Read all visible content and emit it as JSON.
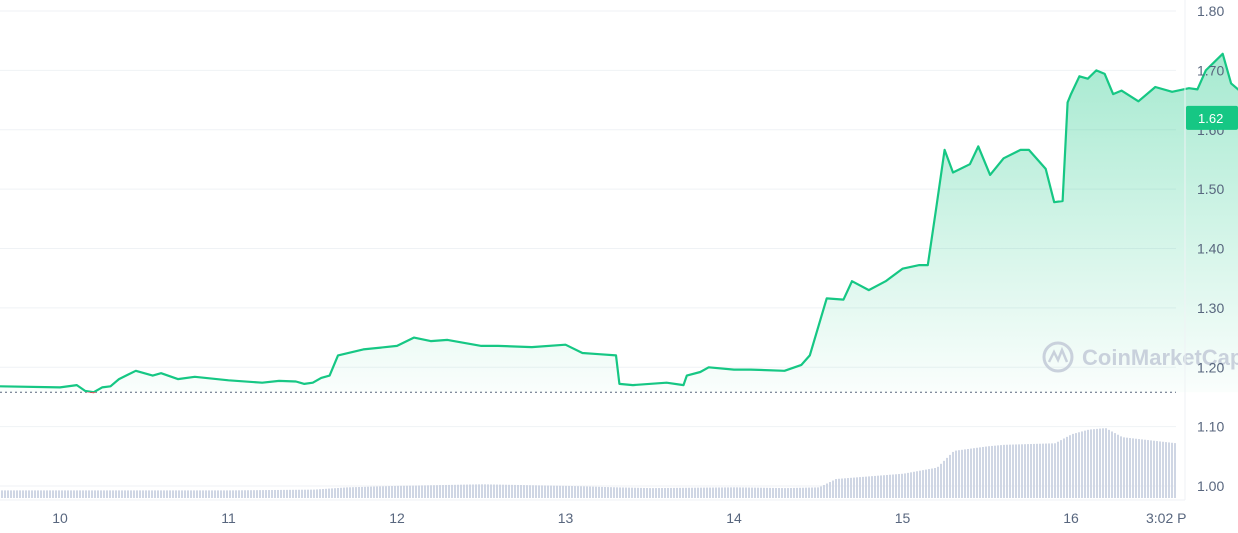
{
  "chart_data": {
    "type": "area",
    "series": [
      {
        "values": [
          [
            0,
            1.166
          ],
          [
            0.1,
            1.17
          ],
          [
            0.15,
            1.16
          ],
          [
            0.2,
            1.158
          ],
          [
            0.25,
            1.166
          ],
          [
            0.3,
            1.168
          ],
          [
            0.35,
            1.18
          ],
          [
            0.45,
            1.194
          ],
          [
            0.55,
            1.186
          ],
          [
            0.6,
            1.19
          ],
          [
            0.7,
            1.18
          ],
          [
            0.8,
            1.184
          ],
          [
            1.0,
            1.178
          ],
          [
            1.2,
            1.174
          ],
          [
            1.3,
            1.177
          ],
          [
            1.4,
            1.176
          ],
          [
            1.45,
            1.172
          ],
          [
            1.5,
            1.174
          ],
          [
            1.55,
            1.182
          ],
          [
            1.6,
            1.186
          ],
          [
            1.65,
            1.22
          ],
          [
            1.8,
            1.23
          ],
          [
            2.0,
            1.236
          ],
          [
            2.1,
            1.25
          ],
          [
            2.2,
            1.244
          ],
          [
            2.3,
            1.246
          ],
          [
            2.5,
            1.236
          ],
          [
            2.6,
            1.236
          ],
          [
            2.8,
            1.234
          ],
          [
            3.0,
            1.238
          ],
          [
            3.1,
            1.224
          ],
          [
            3.2,
            1.222
          ],
          [
            3.3,
            1.22
          ],
          [
            3.32,
            1.172
          ],
          [
            3.4,
            1.17
          ],
          [
            3.6,
            1.174
          ],
          [
            3.7,
            1.17
          ],
          [
            3.72,
            1.186
          ],
          [
            3.8,
            1.192
          ],
          [
            3.85,
            1.2
          ],
          [
            4.0,
            1.196
          ],
          [
            4.1,
            1.196
          ],
          [
            4.3,
            1.194
          ],
          [
            4.4,
            1.204
          ],
          [
            4.45,
            1.22
          ],
          [
            4.55,
            1.316
          ],
          [
            4.65,
            1.314
          ],
          [
            4.7,
            1.345
          ],
          [
            4.8,
            1.33
          ],
          [
            4.9,
            1.345
          ],
          [
            5.0,
            1.366
          ],
          [
            5.1,
            1.372
          ],
          [
            5.15,
            1.372
          ],
          [
            5.2,
            1.468
          ],
          [
            5.25,
            1.566
          ],
          [
            5.3,
            1.528
          ],
          [
            5.4,
            1.542
          ],
          [
            5.45,
            1.572
          ],
          [
            5.52,
            1.524
          ],
          [
            5.6,
            1.552
          ],
          [
            5.7,
            1.566
          ],
          [
            5.75,
            1.566
          ],
          [
            5.8,
            1.55
          ],
          [
            5.85,
            1.534
          ],
          [
            5.9,
            1.478
          ],
          [
            5.95,
            1.48
          ],
          [
            5.98,
            1.646
          ],
          [
            6.0,
            1.66
          ],
          [
            6.05,
            1.69
          ],
          [
            6.1,
            1.686
          ],
          [
            6.15,
            1.7
          ],
          [
            6.2,
            1.694
          ],
          [
            6.25,
            1.66
          ],
          [
            6.3,
            1.666
          ],
          [
            6.4,
            1.648
          ],
          [
            6.5,
            1.672
          ],
          [
            6.6,
            1.664
          ],
          [
            6.7,
            1.67
          ],
          [
            6.75,
            1.668
          ],
          [
            6.8,
            1.7
          ],
          [
            6.9,
            1.728
          ],
          [
            6.95,
            1.678
          ],
          [
            7.0,
            1.666
          ],
          [
            7.05,
            1.634
          ],
          [
            7.15,
            1.64
          ],
          [
            7.25,
            1.65
          ],
          [
            7.3,
            1.632
          ],
          [
            7.35,
            1.604
          ],
          [
            7.4,
            1.606
          ],
          [
            7.45,
            1.608
          ],
          [
            7.5,
            1.622
          ],
          [
            7.6,
            1.63
          ],
          [
            7.65,
            1.646
          ],
          [
            7.7,
            1.64
          ],
          [
            7.75,
            1.63
          ],
          [
            7.78,
            1.62
          ]
        ]
      }
    ],
    "volume": [
      [
        0.0,
        0.1
      ],
      [
        0.5,
        0.1
      ],
      [
        1.0,
        0.1
      ],
      [
        1.5,
        0.11
      ],
      [
        1.7,
        0.14
      ],
      [
        2.0,
        0.16
      ],
      [
        2.5,
        0.18
      ],
      [
        3.0,
        0.16
      ],
      [
        3.3,
        0.14
      ],
      [
        3.5,
        0.13
      ],
      [
        4.0,
        0.14
      ],
      [
        4.3,
        0.13
      ],
      [
        4.5,
        0.14
      ],
      [
        4.6,
        0.25
      ],
      [
        5.0,
        0.32
      ],
      [
        5.2,
        0.4
      ],
      [
        5.3,
        0.62
      ],
      [
        5.5,
        0.68
      ],
      [
        5.6,
        0.7
      ],
      [
        5.9,
        0.72
      ],
      [
        6.0,
        0.84
      ],
      [
        6.1,
        0.9
      ],
      [
        6.2,
        0.92
      ],
      [
        6.3,
        0.8
      ],
      [
        6.5,
        0.75
      ],
      [
        6.7,
        0.7
      ],
      [
        6.9,
        0.71
      ],
      [
        7.0,
        0.6
      ],
      [
        7.2,
        0.54
      ],
      [
        7.4,
        0.52
      ],
      [
        7.78,
        0.52
      ]
    ],
    "x_ticks": [
      "10",
      "11",
      "12",
      "13",
      "14",
      "15",
      "16",
      "3:02 P"
    ],
    "y_ticks": [
      "1.80",
      "1.70",
      "1.60",
      "1.50",
      "1.40",
      "1.30",
      "1.20",
      "1.10",
      "1.00"
    ],
    "ylim": [
      1.0,
      1.8
    ],
    "open_price": 1.158,
    "current_price_label": "1.62",
    "current_price": 1.62,
    "watermark": "CoinMarketCap",
    "grid": true,
    "colors": {
      "up": "#16c784",
      "down": "#ea3943",
      "volume": "#cfd6e4",
      "grid": "#eff2f5",
      "axis_text": "#58667e"
    }
  }
}
